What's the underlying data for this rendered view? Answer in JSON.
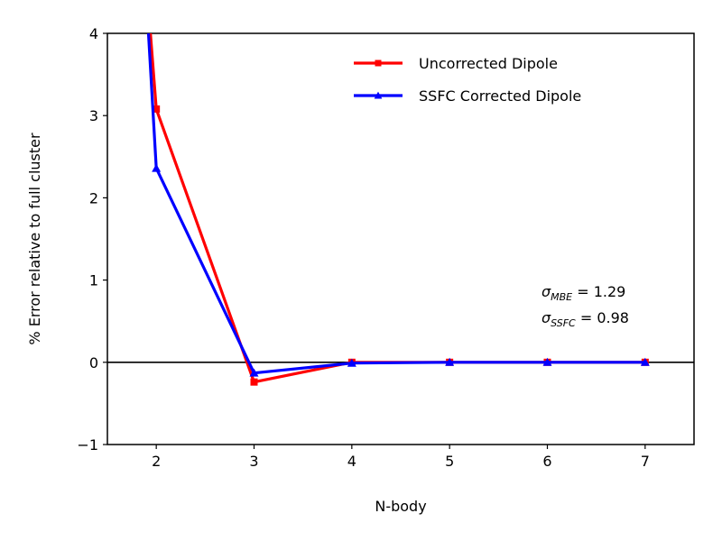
{
  "chart_data": {
    "type": "line",
    "title": "",
    "xlabel": "N-body",
    "ylabel": "% Error relative to full cluster",
    "xlim": [
      1.5,
      7.5
    ],
    "ylim": [
      -1,
      4
    ],
    "x_ticks": [
      2,
      3,
      4,
      5,
      6,
      7
    ],
    "y_ticks": [
      -1,
      0,
      1,
      2,
      3,
      4
    ],
    "x_tick_labels": [
      "2",
      "3",
      "4",
      "5",
      "6",
      "7"
    ],
    "y_tick_labels": [
      "−1",
      "0",
      "1",
      "2",
      "3",
      "4"
    ],
    "x": [
      2,
      3,
      4,
      5,
      6,
      7
    ],
    "hline": 0,
    "grid": false,
    "legend_position": "top-right",
    "series": [
      {
        "name": "Uncorrected Dipole",
        "color": "#ff0000",
        "marker": "square",
        "lead_in": {
          "x": 1.94,
          "y": 4.0
        },
        "values": [
          3.08,
          -0.24,
          0.0,
          0.0,
          0.0,
          0.0
        ]
      },
      {
        "name": "SSFC Corrected Dipole",
        "color": "#0000ff",
        "marker": "triangle",
        "lead_in": {
          "x": 1.92,
          "y": 4.0
        },
        "values": [
          2.36,
          -0.13,
          -0.01,
          0.0,
          0.0,
          0.0
        ]
      }
    ],
    "annotations": {
      "mbe": {
        "symbol": "σ",
        "subscript": "MBE",
        "value_text": " = 1.29"
      },
      "ssfc": {
        "symbol": "σ",
        "subscript": "SSFC",
        "value_text": " = 0.98"
      }
    }
  }
}
